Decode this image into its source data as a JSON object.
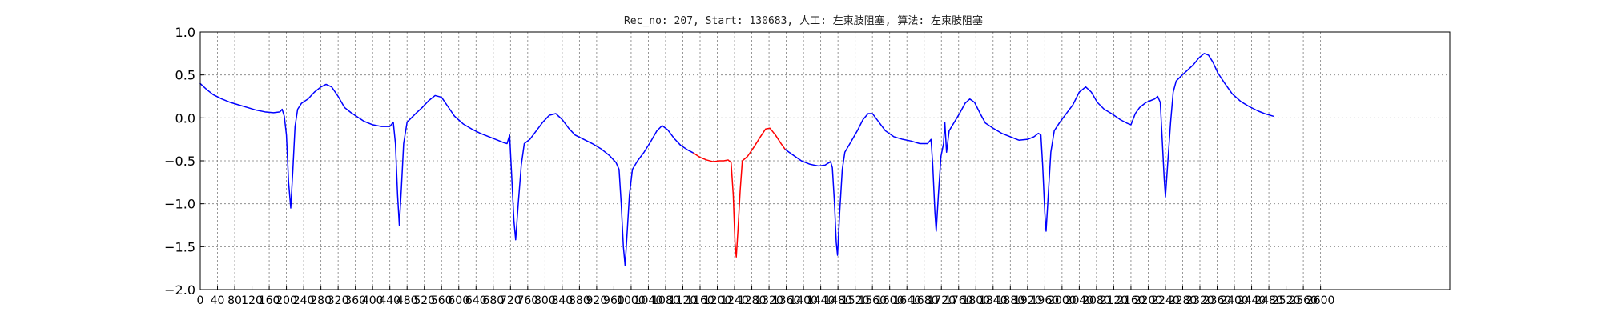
{
  "chart_data": {
    "type": "line",
    "title": "Rec_no: 207, Start: 130683, 人工: 左束肢阻塞, 算法: 左束肢阻塞",
    "xlabel": "",
    "ylabel": "",
    "xlim": [
      0,
      2900
    ],
    "ylim": [
      -2.0,
      1.0
    ],
    "grid": true,
    "yticks": [
      1.0,
      0.5,
      0.0,
      -0.5,
      -1.0,
      -1.5,
      -2.0
    ],
    "ytick_labels": [
      "1.0",
      "0.5",
      "0.0",
      "−0.5",
      "−1.0",
      "−1.5",
      "−2.0"
    ],
    "xticks": [
      0,
      40,
      80,
      120,
      160,
      200,
      240,
      280,
      320,
      360,
      400,
      440,
      480,
      520,
      560,
      600,
      640,
      680,
      720,
      760,
      800,
      840,
      880,
      920,
      960,
      1000,
      1040,
      1080,
      1120,
      1160,
      1200,
      1240,
      1280,
      1320,
      1360,
      1400,
      1440,
      1480,
      1520,
      1560,
      1600,
      1640,
      1680,
      1720,
      1760,
      1800,
      1840,
      1880,
      1920,
      1960,
      2000,
      2040,
      2080,
      2120,
      2160,
      2200,
      2240,
      2280,
      2320,
      2360,
      2400,
      2440,
      2480,
      2520,
      2560,
      2600
    ],
    "xtick_labels": [
      "0",
      "40",
      "80",
      "120",
      "160",
      "200",
      "240",
      "280",
      "320",
      "360",
      "400",
      "440",
      "480",
      "520",
      "560",
      "600",
      "640",
      "680",
      "720",
      "760",
      "800",
      "840",
      "880",
      "920",
      "960",
      "1000",
      "1040",
      "1080",
      "1120",
      "1160",
      "1200",
      "1240",
      "1280",
      "1320",
      "1360",
      "1400",
      "1440",
      "1480",
      "1520",
      "1560",
      "1600",
      "1640",
      "1680",
      "1720",
      "1760",
      "1800",
      "1840",
      "1880",
      "1920",
      "1960",
      "2000",
      "2040",
      "2080",
      "2120",
      "2160",
      "2200",
      "2240",
      "2280",
      "2320",
      "2360",
      "2400",
      "2440",
      "2480",
      "2520",
      "2560",
      "2600"
    ],
    "series": [
      {
        "color": "#0000ff",
        "points": [
          [
            0,
            0.4
          ],
          [
            15,
            0.33
          ],
          [
            30,
            0.27
          ],
          [
            50,
            0.22
          ],
          [
            70,
            0.18
          ],
          [
            90,
            0.15
          ],
          [
            110,
            0.12
          ],
          [
            130,
            0.09
          ],
          [
            150,
            0.07
          ],
          [
            170,
            0.06
          ],
          [
            185,
            0.07
          ],
          [
            190,
            0.1
          ],
          [
            195,
            0.02
          ],
          [
            200,
            -0.2
          ],
          [
            205,
            -0.75
          ],
          [
            210,
            -1.05
          ],
          [
            215,
            -0.6
          ],
          [
            220,
            -0.1
          ],
          [
            226,
            0.1
          ],
          [
            235,
            0.17
          ],
          [
            250,
            0.22
          ],
          [
            265,
            0.3
          ],
          [
            280,
            0.36
          ],
          [
            292,
            0.39
          ],
          [
            305,
            0.36
          ],
          [
            320,
            0.25
          ],
          [
            335,
            0.12
          ],
          [
            350,
            0.06
          ],
          [
            365,
            0.01
          ],
          [
            380,
            -0.04
          ],
          [
            400,
            -0.08
          ],
          [
            420,
            -0.1
          ],
          [
            440,
            -0.1
          ],
          [
            448,
            -0.05
          ],
          [
            453,
            -0.3
          ],
          [
            458,
            -0.9
          ],
          [
            462,
            -1.25
          ],
          [
            467,
            -0.8
          ],
          [
            472,
            -0.3
          ],
          [
            480,
            -0.05
          ],
          [
            490,
            0.0
          ],
          [
            500,
            0.05
          ],
          [
            515,
            0.12
          ],
          [
            530,
            0.2
          ],
          [
            545,
            0.26
          ],
          [
            560,
            0.24
          ],
          [
            575,
            0.13
          ],
          [
            590,
            0.02
          ],
          [
            610,
            -0.07
          ],
          [
            630,
            -0.13
          ],
          [
            650,
            -0.18
          ],
          [
            670,
            -0.22
          ],
          [
            690,
            -0.26
          ],
          [
            705,
            -0.29
          ],
          [
            712,
            -0.3
          ],
          [
            718,
            -0.2
          ],
          [
            722,
            -0.6
          ],
          [
            728,
            -1.2
          ],
          [
            732,
            -1.42
          ],
          [
            738,
            -1.0
          ],
          [
            745,
            -0.55
          ],
          [
            752,
            -0.3
          ],
          [
            765,
            -0.25
          ],
          [
            780,
            -0.15
          ],
          [
            795,
            -0.05
          ],
          [
            810,
            0.03
          ],
          [
            825,
            0.05
          ],
          [
            840,
            -0.02
          ],
          [
            855,
            -0.12
          ],
          [
            870,
            -0.2
          ],
          [
            890,
            -0.25
          ],
          [
            910,
            -0.3
          ],
          [
            930,
            -0.36
          ],
          [
            950,
            -0.44
          ],
          [
            965,
            -0.52
          ],
          [
            972,
            -0.6
          ],
          [
            977,
            -1.0
          ],
          [
            982,
            -1.5
          ],
          [
            986,
            -1.72
          ],
          [
            990,
            -1.4
          ],
          [
            996,
            -0.9
          ],
          [
            1003,
            -0.6
          ],
          [
            1015,
            -0.5
          ],
          [
            1030,
            -0.4
          ],
          [
            1045,
            -0.28
          ],
          [
            1060,
            -0.15
          ],
          [
            1072,
            -0.09
          ],
          [
            1085,
            -0.14
          ],
          [
            1100,
            -0.24
          ],
          [
            1115,
            -0.32
          ],
          [
            1130,
            -0.37
          ],
          [
            1145,
            -0.41
          ]
        ]
      },
      {
        "color": "#ff0000",
        "points": [
          [
            1145,
            -0.41
          ],
          [
            1160,
            -0.46
          ],
          [
            1175,
            -0.49
          ],
          [
            1190,
            -0.51
          ],
          [
            1205,
            -0.5
          ],
          [
            1215,
            -0.5
          ],
          [
            1225,
            -0.49
          ],
          [
            1232,
            -0.52
          ],
          [
            1237,
            -0.9
          ],
          [
            1241,
            -1.45
          ],
          [
            1244,
            -1.62
          ],
          [
            1248,
            -1.3
          ],
          [
            1253,
            -0.85
          ],
          [
            1258,
            -0.5
          ],
          [
            1270,
            -0.45
          ],
          [
            1285,
            -0.34
          ],
          [
            1300,
            -0.22
          ],
          [
            1312,
            -0.13
          ],
          [
            1322,
            -0.12
          ],
          [
            1335,
            -0.2
          ],
          [
            1348,
            -0.3
          ],
          [
            1358,
            -0.37
          ]
        ]
      },
      {
        "color": "#0000ff",
        "points": [
          [
            1358,
            -0.37
          ],
          [
            1375,
            -0.43
          ],
          [
            1395,
            -0.5
          ],
          [
            1415,
            -0.54
          ],
          [
            1435,
            -0.56
          ],
          [
            1450,
            -0.55
          ],
          [
            1463,
            -0.51
          ],
          [
            1467,
            -0.58
          ],
          [
            1472,
            -1.0
          ],
          [
            1476,
            -1.45
          ],
          [
            1479,
            -1.6
          ],
          [
            1484,
            -1.1
          ],
          [
            1490,
            -0.6
          ],
          [
            1496,
            -0.4
          ],
          [
            1510,
            -0.28
          ],
          [
            1525,
            -0.15
          ],
          [
            1538,
            -0.02
          ],
          [
            1550,
            0.05
          ],
          [
            1560,
            0.05
          ],
          [
            1575,
            -0.05
          ],
          [
            1590,
            -0.15
          ],
          [
            1610,
            -0.22
          ],
          [
            1630,
            -0.25
          ],
          [
            1650,
            -0.27
          ],
          [
            1670,
            -0.3
          ],
          [
            1688,
            -0.3
          ],
          [
            1696,
            -0.25
          ],
          [
            1700,
            -0.55
          ],
          [
            1705,
            -1.1
          ],
          [
            1708,
            -1.32
          ],
          [
            1713,
            -0.9
          ],
          [
            1719,
            -0.45
          ],
          [
            1725,
            -0.3
          ],
          [
            1728,
            -0.05
          ],
          [
            1732,
            -0.4
          ],
          [
            1738,
            -0.15
          ],
          [
            1750,
            -0.05
          ],
          [
            1762,
            0.05
          ],
          [
            1775,
            0.17
          ],
          [
            1786,
            0.22
          ],
          [
            1797,
            0.18
          ],
          [
            1810,
            0.05
          ],
          [
            1822,
            -0.06
          ],
          [
            1840,
            -0.12
          ],
          [
            1860,
            -0.18
          ],
          [
            1880,
            -0.22
          ],
          [
            1900,
            -0.26
          ],
          [
            1920,
            -0.25
          ],
          [
            1935,
            -0.22
          ],
          [
            1945,
            -0.18
          ],
          [
            1951,
            -0.2
          ],
          [
            1955,
            -0.55
          ],
          [
            1960,
            -1.1
          ],
          [
            1963,
            -1.32
          ],
          [
            1968,
            -0.9
          ],
          [
            1974,
            -0.4
          ],
          [
            1982,
            -0.15
          ],
          [
            1995,
            -0.05
          ],
          [
            2010,
            0.05
          ],
          [
            2025,
            0.15
          ],
          [
            2040,
            0.3
          ],
          [
            2055,
            0.36
          ],
          [
            2068,
            0.3
          ],
          [
            2082,
            0.18
          ],
          [
            2098,
            0.1
          ],
          [
            2115,
            0.05
          ],
          [
            2135,
            -0.02
          ],
          [
            2150,
            -0.06
          ],
          [
            2160,
            -0.08
          ],
          [
            2170,
            0.05
          ],
          [
            2180,
            0.12
          ],
          [
            2195,
            0.18
          ],
          [
            2205,
            0.2
          ],
          [
            2215,
            0.22
          ],
          [
            2222,
            0.25
          ],
          [
            2228,
            0.18
          ],
          [
            2232,
            -0.2
          ],
          [
            2237,
            -0.7
          ],
          [
            2240,
            -0.92
          ],
          [
            2245,
            -0.55
          ],
          [
            2252,
            -0.05
          ],
          [
            2258,
            0.3
          ],
          [
            2265,
            0.43
          ],
          [
            2275,
            0.48
          ],
          [
            2290,
            0.55
          ],
          [
            2305,
            0.62
          ],
          [
            2318,
            0.7
          ],
          [
            2330,
            0.75
          ],
          [
            2340,
            0.73
          ],
          [
            2350,
            0.65
          ],
          [
            2362,
            0.52
          ],
          [
            2378,
            0.4
          ],
          [
            2395,
            0.28
          ],
          [
            2415,
            0.19
          ],
          [
            2435,
            0.13
          ],
          [
            2455,
            0.08
          ],
          [
            2470,
            0.05
          ],
          [
            2490,
            0.02
          ]
        ]
      }
    ]
  }
}
